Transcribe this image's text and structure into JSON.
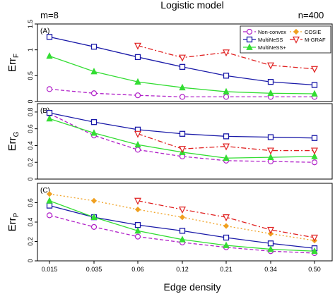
{
  "figure": {
    "title": "Logistic model",
    "left_note": "m=8",
    "right_note": "n=400",
    "xlabel": "Edge density"
  },
  "chart_data": [
    {
      "type": "line",
      "panel_label": "(A)",
      "ylabel_main": "Err",
      "ylabel_sub": "F",
      "categories": [
        "0.015",
        "0.035",
        "0.06",
        "0.12",
        "0.21",
        "0.34",
        "0.50"
      ],
      "ylim": [
        0,
        1.5
      ],
      "yticks": [
        0,
        0.5,
        1,
        1.5
      ],
      "ytick_labels": [
        "0",
        "0.5",
        "1",
        "1.5"
      ],
      "legend": {
        "placement": "top-right",
        "entries": [
          "Non-convex",
          "COSIE",
          "MultiNeSS",
          "M-GRAF",
          "MultiNeSS+"
        ]
      },
      "series": [
        {
          "name": "Non-convex",
          "color": "#b020c8",
          "dash": "dashed",
          "marker": "circle",
          "values": [
            0.24,
            0.16,
            0.12,
            0.09,
            0.09,
            0.09,
            0.09
          ]
        },
        {
          "name": "MultiNeSS",
          "color": "#1a1aa8",
          "dash": "solid",
          "marker": "square",
          "values": [
            1.25,
            1.06,
            0.86,
            0.67,
            0.5,
            0.38,
            0.32
          ]
        },
        {
          "name": "MultiNeSS+",
          "color": "#33dd33",
          "dash": "solid",
          "marker": "triangle",
          "values": [
            0.88,
            0.58,
            0.38,
            0.27,
            0.19,
            0.16,
            0.15
          ]
        },
        {
          "name": "M-GRAF",
          "color": "#e02020",
          "dash": "dashdot",
          "marker": "triangle-down",
          "values": [
            null,
            null,
            1.08,
            0.85,
            0.95,
            0.7,
            0.63
          ]
        }
      ]
    },
    {
      "type": "line",
      "panel_label": "(B)",
      "ylabel_main": "Err",
      "ylabel_sub": "G",
      "categories": [
        "0.015",
        "0.035",
        "0.06",
        "0.12",
        "0.21",
        "0.34",
        "0.50"
      ],
      "ylim": [
        0,
        0.9
      ],
      "yticks": [
        0,
        0.2,
        0.4,
        0.6,
        0.8
      ],
      "ytick_labels": [
        "0",
        "0.2",
        "0.4",
        "0.6",
        "0.8"
      ],
      "series": [
        {
          "name": "Non-convex",
          "color": "#b020c8",
          "dash": "dashed",
          "marker": "circle",
          "values": [
            0.78,
            0.52,
            0.35,
            0.27,
            0.22,
            0.21,
            0.2
          ]
        },
        {
          "name": "MultiNeSS",
          "color": "#1a1aa8",
          "dash": "solid",
          "marker": "square",
          "values": [
            0.79,
            0.68,
            0.59,
            0.54,
            0.51,
            0.5,
            0.49
          ]
        },
        {
          "name": "MultiNeSS+",
          "color": "#33dd33",
          "dash": "solid",
          "marker": "triangle",
          "values": [
            0.72,
            0.55,
            0.41,
            0.32,
            0.25,
            0.26,
            0.27
          ]
        },
        {
          "name": "M-GRAF",
          "color": "#e02020",
          "dash": "dashdot",
          "marker": "triangle-down",
          "values": [
            null,
            null,
            0.54,
            0.36,
            0.39,
            0.34,
            0.34
          ]
        }
      ]
    },
    {
      "type": "line",
      "panel_label": "(C)",
      "ylabel_main": "Err",
      "ylabel_sub": "P",
      "categories": [
        "0.015",
        "0.035",
        "0.06",
        "0.12",
        "0.21",
        "0.34",
        "0.50"
      ],
      "ylim": [
        0,
        0.8
      ],
      "yticks": [
        0,
        0.2,
        0.4,
        0.6
      ],
      "ytick_labels": [
        "0",
        "0.2",
        "0.4",
        "0.6"
      ],
      "series": [
        {
          "name": "Non-convex",
          "color": "#b020c8",
          "dash": "dashed",
          "marker": "circle",
          "values": [
            0.47,
            0.35,
            0.25,
            0.19,
            0.14,
            0.1,
            0.08
          ]
        },
        {
          "name": "COSIE",
          "color": "#f0a020",
          "dash": "dotted",
          "marker": "diamond",
          "values": [
            0.69,
            0.62,
            0.53,
            0.45,
            0.36,
            0.28,
            0.21
          ]
        },
        {
          "name": "MultiNeSS",
          "color": "#1a1aa8",
          "dash": "solid",
          "marker": "square",
          "values": [
            0.57,
            0.45,
            0.37,
            0.31,
            0.24,
            0.18,
            0.13
          ]
        },
        {
          "name": "MultiNeSS+",
          "color": "#33dd33",
          "dash": "solid",
          "marker": "triangle",
          "values": [
            0.62,
            0.45,
            0.31,
            0.22,
            0.16,
            0.12,
            0.1
          ]
        },
        {
          "name": "M-GRAF",
          "color": "#e02020",
          "dash": "dashdot",
          "marker": "triangle-down",
          "values": [
            null,
            null,
            0.62,
            0.53,
            0.45,
            0.32,
            0.24
          ]
        }
      ]
    }
  ]
}
